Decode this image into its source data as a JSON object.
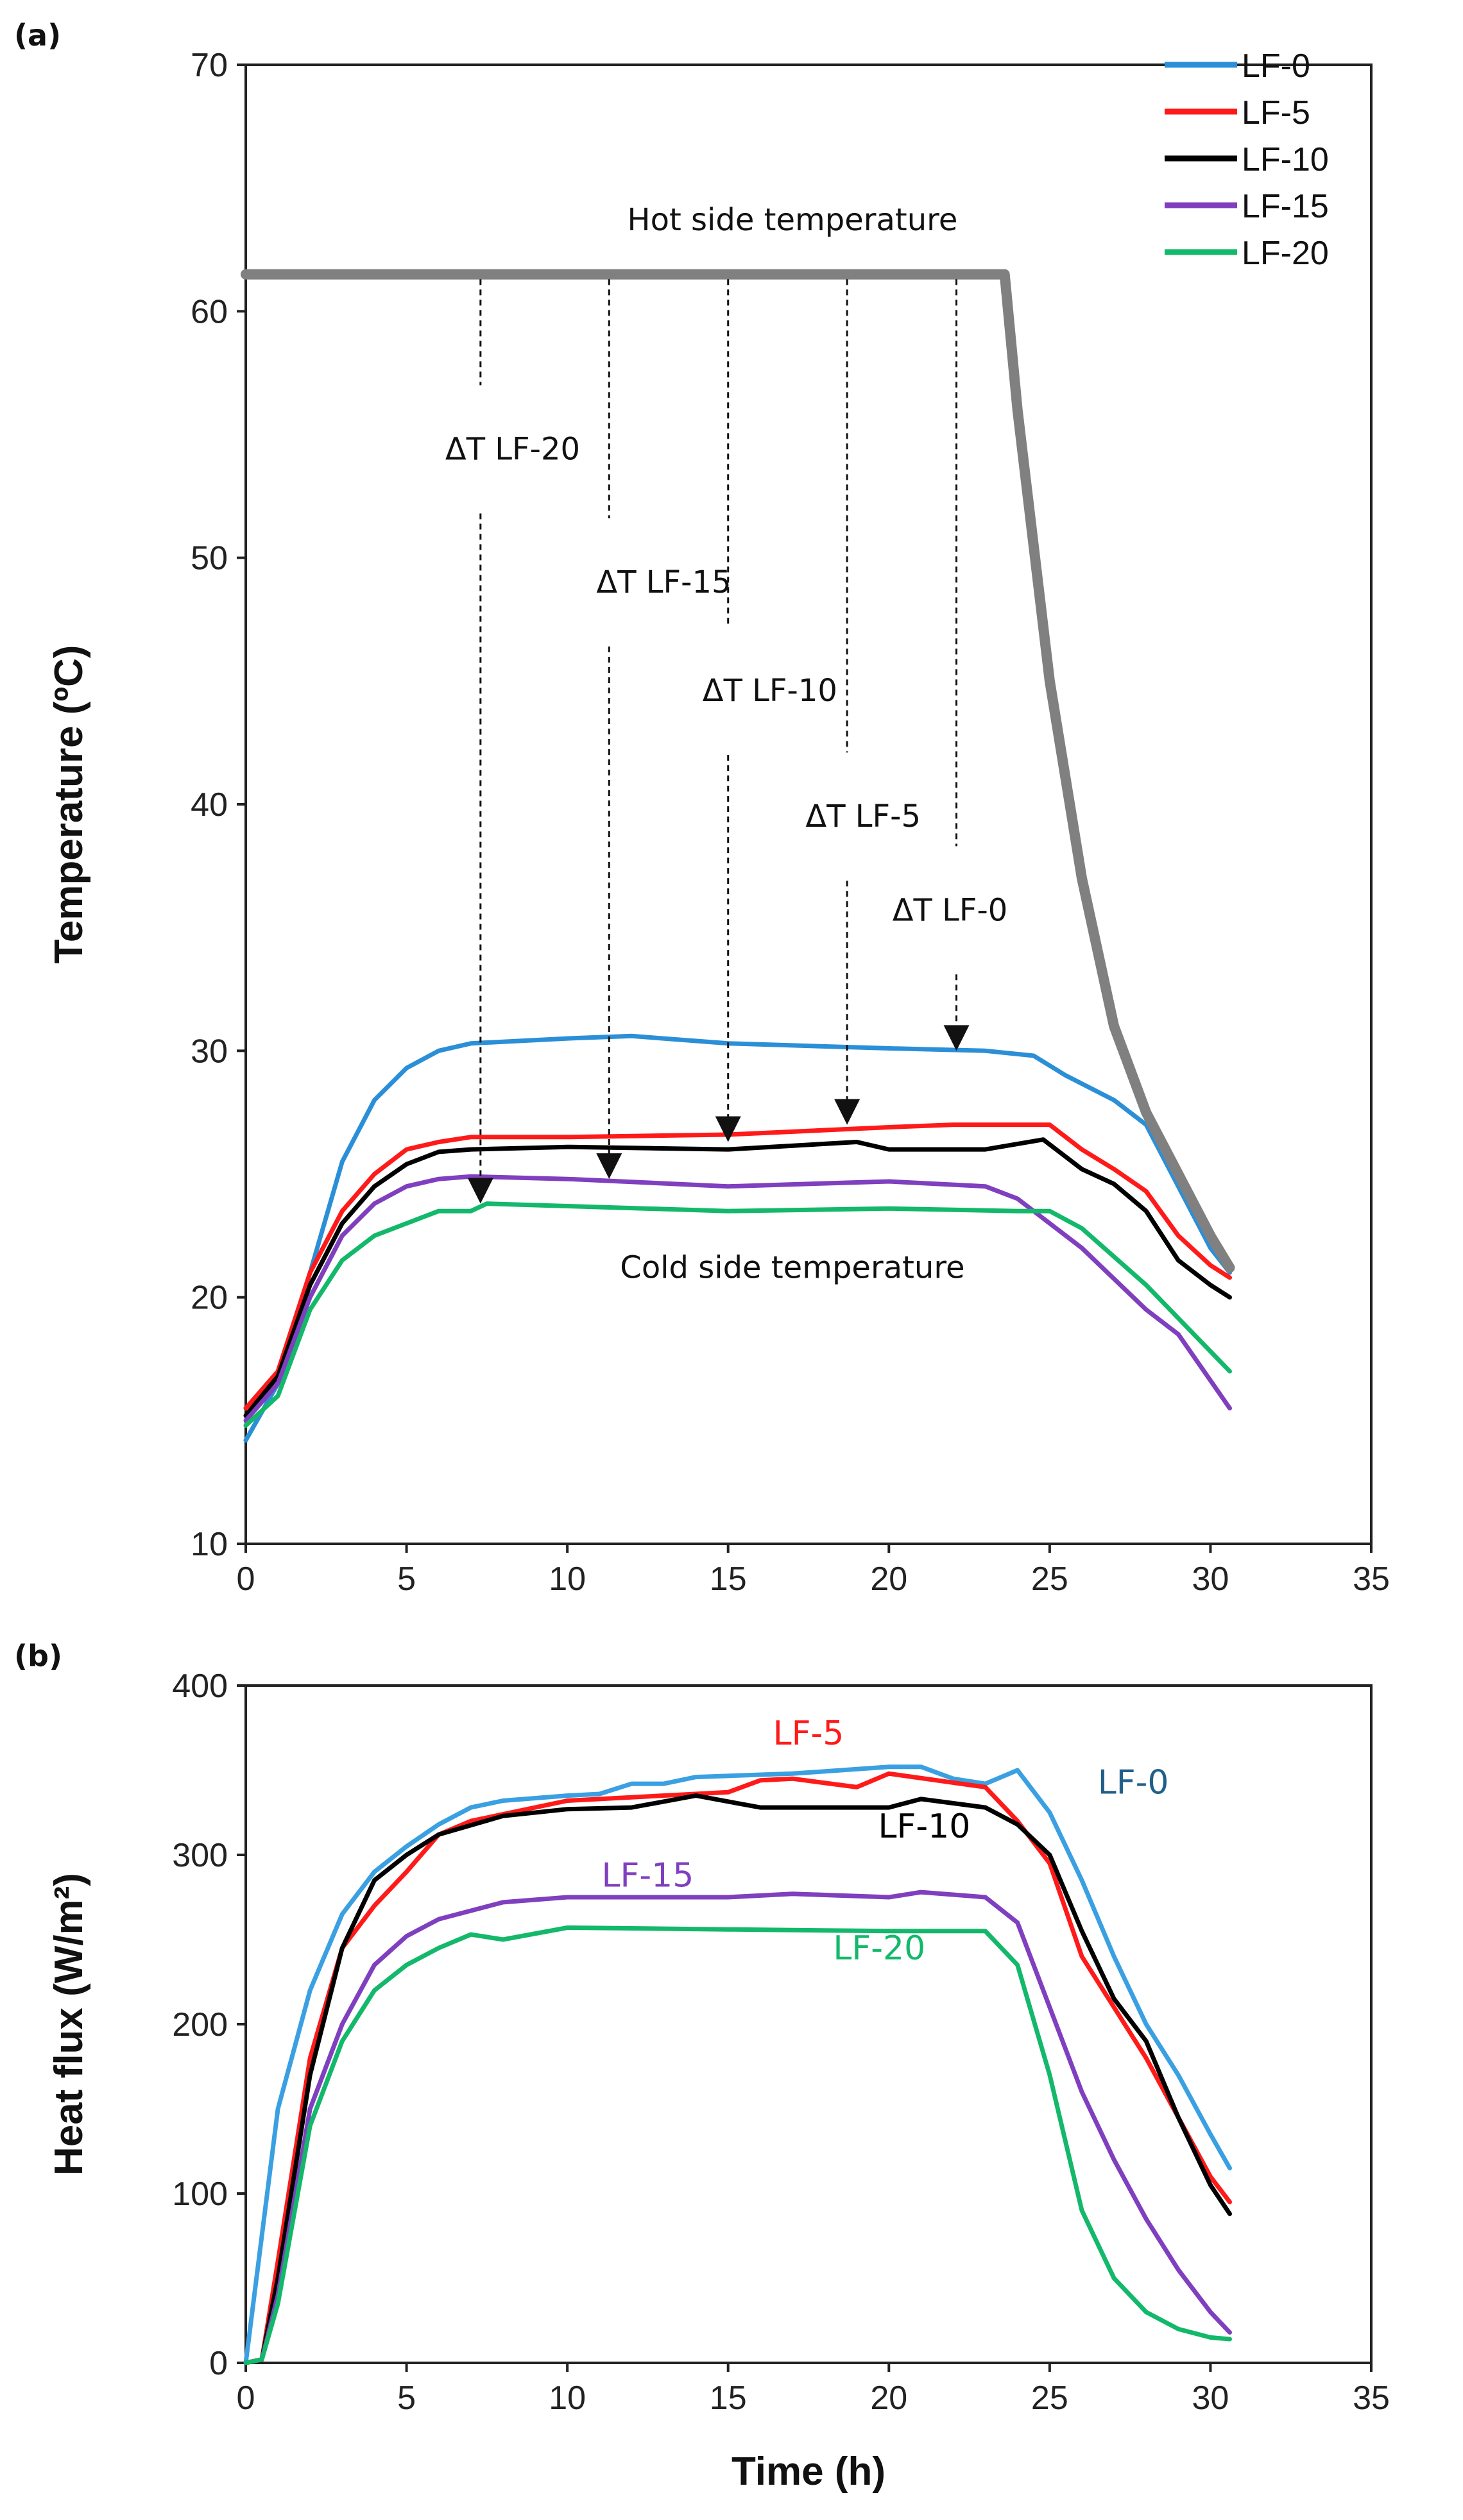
{
  "chart_data": [
    {
      "type": "line",
      "panel_label": "(a)",
      "title": "",
      "xlabel": "",
      "ylabel": "Temperature (ºC)",
      "xlim": [
        0,
        35
      ],
      "ylim": [
        10,
        70
      ],
      "xticks": [
        0,
        5,
        10,
        15,
        20,
        25,
        30,
        35
      ],
      "yticks": [
        10,
        20,
        30,
        40,
        50,
        60,
        70
      ],
      "grid": false,
      "legend": "top-right",
      "series": [
        {
          "name": "LF-0",
          "color": "#2b8fd8",
          "x": [
            0,
            1,
            2,
            3,
            4,
            5,
            6,
            7,
            10,
            12,
            15,
            20,
            23,
            24.5,
            25.5,
            27,
            28,
            29,
            30,
            30.6
          ],
          "y": [
            14.2,
            16.5,
            21,
            25.5,
            28,
            29.3,
            30,
            30.3,
            30.5,
            30.6,
            30.3,
            30.1,
            30,
            29.8,
            29,
            28,
            27,
            24.5,
            22,
            21
          ]
        },
        {
          "name": "LF-5",
          "color": "#ff1a1a",
          "x": [
            0,
            1,
            2,
            3,
            4,
            5,
            6,
            7,
            10,
            15,
            20,
            22,
            25,
            26,
            27,
            28,
            29,
            30,
            30.6
          ],
          "y": [
            15.5,
            17,
            21,
            23.5,
            25,
            26,
            26.3,
            26.5,
            26.5,
            26.6,
            26.9,
            27,
            27,
            26,
            25.2,
            24.3,
            22.5,
            21.3,
            20.8
          ]
        },
        {
          "name": "LF-10",
          "color": "#000000",
          "x": [
            0,
            1,
            2,
            3,
            4,
            5,
            6,
            7,
            10,
            15,
            19,
            20,
            23,
            24.8,
            26,
            27,
            28,
            29,
            30,
            30.6
          ],
          "y": [
            15.2,
            16.8,
            20.5,
            23,
            24.5,
            25.4,
            25.9,
            26,
            26.1,
            26,
            26.3,
            26,
            26,
            26.4,
            25.2,
            24.6,
            23.5,
            21.5,
            20.5,
            20
          ]
        },
        {
          "name": "LF-15",
          "color": "#7f3fbf",
          "x": [
            0,
            1,
            2,
            3,
            4,
            5,
            6,
            7,
            10,
            15,
            20,
            23,
            24,
            26,
            28,
            29,
            30.6
          ],
          "y": [
            15,
            16.5,
            20,
            22.5,
            23.8,
            24.5,
            24.8,
            24.9,
            24.8,
            24.5,
            24.7,
            24.5,
            24,
            22,
            19.5,
            18.5,
            15.5
          ]
        },
        {
          "name": "LF-20",
          "color": "#13b86b",
          "x": [
            0,
            1,
            2,
            3,
            4,
            5,
            6,
            7,
            7.5,
            10,
            15,
            20,
            24,
            25,
            26,
            28,
            30.6
          ],
          "y": [
            14.8,
            16,
            19.5,
            21.5,
            22.5,
            23,
            23.5,
            23.5,
            23.8,
            23.7,
            23.5,
            23.6,
            23.5,
            23.5,
            22.8,
            20.5,
            17
          ]
        },
        {
          "name": "Hot side",
          "color": "#808080",
          "x": [
            0,
            23.6,
            24,
            25,
            26,
            27,
            28,
            29,
            30,
            30.6
          ],
          "y": [
            61.5,
            61.5,
            56,
            45,
            37,
            31,
            27.5,
            25,
            22.5,
            21.2
          ]
        }
      ],
      "annotations": [
        {
          "text": "Hot side temperature",
          "x": 17,
          "y": 63.7
        },
        {
          "text": "Cold side temperature",
          "x": 17,
          "y": 21.2
        },
        {
          "text": "ΔT LF-20",
          "x": 8.3,
          "y": 54.4,
          "arrow_x": 7.3,
          "arrow_to": 23.8
        },
        {
          "text": "ΔT LF-15",
          "x": 13,
          "y": 49,
          "arrow_x": 11.3,
          "arrow_to": 24.8
        },
        {
          "text": "ΔT LF-10",
          "x": 16.3,
          "y": 44.6,
          "arrow_x": 15,
          "arrow_to": 26.3
        },
        {
          "text": "ΔT LF-5",
          "x": 19.2,
          "y": 39.5,
          "arrow_x": 18.7,
          "arrow_to": 27
        },
        {
          "text": "ΔT LF-0",
          "x": 21.9,
          "y": 35.7,
          "arrow_x": 22.1,
          "arrow_to": 30
        }
      ]
    },
    {
      "type": "line",
      "panel_label": "(b)",
      "title": "",
      "xlabel": "Time (h)",
      "ylabel": "Heat flux (W/m²)",
      "xlim": [
        0,
        35
      ],
      "ylim": [
        0,
        400
      ],
      "xticks": [
        0,
        5,
        10,
        15,
        20,
        25,
        30,
        35
      ],
      "yticks": [
        0,
        100,
        200,
        300,
        400
      ],
      "grid": false,
      "legend": "inline labels",
      "series": [
        {
          "name": "LF-0",
          "color": "#3aa0e2",
          "label_color": "#1f5f8b",
          "label_x": 27.6,
          "label_y": 343,
          "x": [
            0,
            1,
            2,
            3,
            4,
            5,
            6,
            7,
            8,
            10,
            11,
            12,
            13,
            14,
            17,
            20,
            21,
            22,
            23,
            24,
            25,
            26,
            27,
            28,
            29,
            30,
            30.6
          ],
          "y": [
            0,
            150,
            220,
            265,
            290,
            305,
            318,
            328,
            332,
            335,
            336,
            342,
            342,
            346,
            348,
            352,
            352,
            345,
            342,
            350,
            325,
            285,
            240,
            200,
            170,
            135,
            115
          ]
        },
        {
          "name": "LF-5",
          "color": "#ff1a1a",
          "label_color": "#ff1a1a",
          "label_x": 17.5,
          "label_y": 372,
          "x": [
            0,
            0.5,
            1,
            2,
            3,
            4,
            5,
            6,
            7,
            10,
            15,
            16,
            17,
            19,
            20,
            23,
            24,
            25,
            26,
            27,
            28,
            29,
            30,
            30.6
          ],
          "y": [
            0,
            2,
            60,
            180,
            245,
            270,
            290,
            312,
            320,
            332,
            337,
            344,
            345,
            340,
            348,
            340,
            320,
            295,
            240,
            210,
            180,
            145,
            110,
            95
          ]
        },
        {
          "name": "LF-10",
          "color": "#000000",
          "label_color": "#000000",
          "label_x": 21.1,
          "label_y": 317,
          "x": [
            0,
            0.5,
            1,
            2,
            3,
            4,
            5,
            6,
            8,
            10,
            12,
            14,
            16,
            20,
            21,
            23,
            24,
            25,
            26,
            27,
            28,
            29,
            30,
            30.6
          ],
          "y": [
            0,
            2,
            50,
            170,
            245,
            285,
            300,
            312,
            323,
            327,
            328,
            335,
            328,
            328,
            333,
            328,
            318,
            300,
            255,
            215,
            190,
            145,
            105,
            88
          ]
        },
        {
          "name": "LF-15",
          "color": "#7f3fbf",
          "label_color": "#7f3fbf",
          "label_x": 12.5,
          "label_y": 288,
          "x": [
            0,
            0.5,
            1,
            2,
            3,
            4,
            5,
            6,
            8,
            10,
            15,
            17,
            20,
            21,
            23,
            24,
            25,
            26,
            27,
            28,
            29,
            30,
            30.6
          ],
          "y": [
            0,
            2,
            40,
            150,
            200,
            235,
            252,
            262,
            272,
            275,
            275,
            277,
            275,
            278,
            275,
            260,
            210,
            160,
            120,
            85,
            55,
            30,
            18
          ]
        },
        {
          "name": "LF-20",
          "color": "#13b86b",
          "label_color": "#13b86b",
          "label_x": 19.7,
          "label_y": 245,
          "x": [
            0,
            0.5,
            1,
            2,
            3,
            4,
            5,
            6,
            7,
            8,
            10,
            15,
            20,
            23,
            24,
            25,
            26,
            27,
            28,
            29,
            30,
            30.6
          ],
          "y": [
            0,
            2,
            35,
            140,
            190,
            220,
            235,
            245,
            253,
            250,
            257,
            256,
            255,
            255,
            235,
            170,
            90,
            50,
            30,
            20,
            15,
            14
          ]
        }
      ]
    }
  ]
}
